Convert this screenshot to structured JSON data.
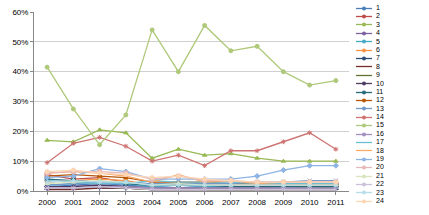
{
  "chart_data": {
    "type": "line",
    "categories": [
      "2000",
      "2001",
      "2002",
      "2003",
      "2004",
      "2005",
      "2006",
      "2007",
      "2008",
      "2009",
      "2010",
      "2011"
    ],
    "ylim": [
      0,
      60
    ],
    "yticks": [
      {
        "value": 0,
        "label": "0%"
      },
      {
        "value": 10,
        "label": "10%"
      },
      {
        "value": 20,
        "label": "20%"
      },
      {
        "value": 30,
        "label": "30%"
      },
      {
        "value": 40,
        "label": "40%"
      },
      {
        "value": 50,
        "label": "50%"
      },
      {
        "value": 60,
        "label": "60%"
      }
    ],
    "grid": true,
    "legend": "right",
    "series": [
      {
        "name": "1",
        "color": "#4A7EBB",
        "marker": "diamond",
        "values": [
          1.5,
          2,
          2.5,
          2,
          1.5,
          2,
          1.5,
          1.5,
          2,
          2,
          2.5,
          2.5
        ]
      },
      {
        "name": "2",
        "color": "#BE4B48",
        "marker": "square",
        "values": [
          5.5,
          4,
          4.5,
          3,
          2,
          2.5,
          2,
          2,
          2,
          2,
          2,
          2
        ]
      },
      {
        "name": "3",
        "color": "#98B954",
        "marker": "triangle",
        "values": [
          17,
          16.5,
          20.5,
          19.5,
          11,
          14,
          12,
          12.5,
          11,
          10,
          10,
          10
        ]
      },
      {
        "name": "4",
        "color": "#7D60A0",
        "marker": "x",
        "values": [
          1,
          1.5,
          2,
          1.5,
          1,
          1,
          1,
          1,
          1,
          1,
          1,
          1
        ]
      },
      {
        "name": "5",
        "color": "#46AAC5",
        "marker": "star",
        "values": [
          2,
          2.5,
          3,
          2.5,
          1.5,
          2,
          1.5,
          1.5,
          1.5,
          1.5,
          1.5,
          1.5
        ]
      },
      {
        "name": "6",
        "color": "#F79646",
        "marker": "circle",
        "values": [
          3,
          3.5,
          4,
          3.5,
          2,
          2.5,
          2,
          2,
          2,
          2,
          2,
          2.5
        ]
      },
      {
        "name": "7",
        "color": "#2C4D75",
        "marker": "plus",
        "values": [
          0.5,
          1,
          1,
          1,
          0.5,
          0.5,
          0.5,
          0.5,
          0.5,
          0.5,
          0.5,
          0.5
        ]
      },
      {
        "name": "8",
        "color": "#772C2A",
        "marker": "none",
        "values": [
          0.5,
          0.5,
          1,
          1,
          0.5,
          0.5,
          0.5,
          0.5,
          0.5,
          0.5,
          0.5,
          0.5
        ]
      },
      {
        "name": "9",
        "color": "#5F7530",
        "marker": "none",
        "values": [
          1,
          1,
          1.5,
          1,
          0.5,
          1,
          0.5,
          0.5,
          0.5,
          0.5,
          1,
          1
        ]
      },
      {
        "name": "10",
        "color": "#4D3B62",
        "marker": "diamond",
        "values": [
          1.5,
          1.5,
          2,
          1.5,
          1,
          1,
          1,
          1,
          1,
          1.5,
          1.5,
          1.5
        ]
      },
      {
        "name": "11",
        "color": "#276A7C",
        "marker": "square",
        "values": [
          4,
          3.5,
          3,
          2.5,
          2,
          2,
          2,
          1.5,
          1.5,
          1.5,
          1.5,
          1.5
        ]
      },
      {
        "name": "12",
        "color": "#B65708",
        "marker": "triangle",
        "values": [
          5,
          5.5,
          5,
          4.5,
          3,
          3,
          3,
          2.5,
          2.5,
          2.5,
          2.5,
          2.5
        ]
      },
      {
        "name": "13",
        "color": "#729ACA",
        "marker": "x",
        "values": [
          2,
          2.5,
          3,
          3,
          2.5,
          2.5,
          2.5,
          2.5,
          3,
          3,
          3.5,
          3.5
        ]
      },
      {
        "name": "14",
        "color": "#CD7371",
        "marker": "star",
        "values": [
          9.5,
          16,
          18,
          15,
          10,
          12,
          8.5,
          13.5,
          13.5,
          16.5,
          19.5,
          14
        ]
      },
      {
        "name": "15",
        "color": "#AFC97A",
        "marker": "circle",
        "values": [
          41.5,
          27.5,
          15.5,
          25.5,
          54,
          40,
          55.5,
          47,
          48.5,
          40,
          35.5,
          37
        ]
      },
      {
        "name": "16",
        "color": "#A18FBF",
        "marker": "plus",
        "values": [
          1,
          1,
          1.5,
          1.5,
          1,
          1,
          1,
          1,
          1,
          1,
          1,
          1
        ]
      },
      {
        "name": "17",
        "color": "#6BBDD3",
        "marker": "none",
        "values": [
          3.5,
          3,
          2.5,
          2.5,
          3.5,
          3,
          3,
          3,
          2.5,
          2.5,
          2.5,
          2.5
        ]
      },
      {
        "name": "18",
        "color": "#F9AB6B",
        "marker": "none",
        "values": [
          6,
          6.5,
          6,
          5,
          3,
          5.5,
          3,
          3.5,
          2.5,
          3,
          3,
          3
        ]
      },
      {
        "name": "19",
        "color": "#8EB4E3",
        "marker": "diamond",
        "values": [
          4.5,
          5,
          7.5,
          6.5,
          4,
          4,
          4,
          4,
          5,
          7,
          8.5,
          8.5
        ]
      },
      {
        "name": "20",
        "color": "#E6B9B8",
        "marker": "square",
        "values": [
          6,
          6.5,
          6.5,
          6,
          4,
          5,
          3.5,
          3.5,
          3,
          3,
          3,
          3
        ]
      },
      {
        "name": "21",
        "color": "#D7E4BD",
        "marker": "triangle",
        "values": [
          2.5,
          3,
          3.5,
          3,
          2,
          2.5,
          2,
          2,
          2,
          2,
          2,
          2
        ]
      },
      {
        "name": "22",
        "color": "#CCC1DA",
        "marker": "x",
        "values": [
          1,
          1,
          1.5,
          1,
          0.5,
          0.5,
          0.5,
          0.5,
          0.5,
          0.5,
          0.5,
          0.5
        ]
      },
      {
        "name": "23",
        "color": "#B7DEE8",
        "marker": "star",
        "values": [
          3,
          3.5,
          3,
          3,
          2,
          2,
          2,
          2,
          2,
          2,
          2,
          2
        ]
      },
      {
        "name": "24",
        "color": "#FCD5B5",
        "marker": "circle",
        "values": [
          6.5,
          7,
          6,
          5.5,
          4.5,
          5,
          4,
          3.5,
          3,
          3,
          3,
          3
        ]
      }
    ]
  }
}
